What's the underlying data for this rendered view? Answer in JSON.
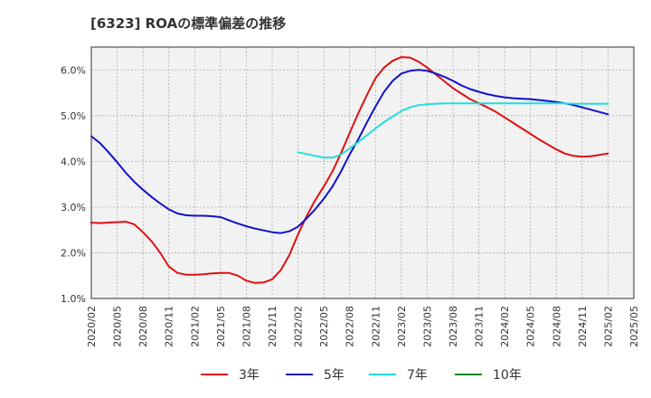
{
  "chart_data": {
    "type": "line",
    "title": "[6323]  ROAの標準偏差の推移",
    "xlabel": "",
    "ylabel": "",
    "ylim": [
      1.0,
      6.5
    ],
    "yticks": [
      1.0,
      2.0,
      3.0,
      4.0,
      5.0,
      6.0
    ],
    "ytick_labels": [
      "1.0%",
      "2.0%",
      "3.0%",
      "4.0%",
      "5.0%",
      "6.0%"
    ],
    "x_range": [
      "2020/02",
      "2025/05"
    ],
    "x_ticks": [
      "2020/02",
      "2020/05",
      "2020/08",
      "2020/11",
      "2021/02",
      "2021/05",
      "2021/08",
      "2021/11",
      "2022/02",
      "2022/05",
      "2022/08",
      "2022/11",
      "2023/02",
      "2023/05",
      "2023/08",
      "2023/11",
      "2024/02",
      "2024/05",
      "2024/08",
      "2024/11",
      "2025/02",
      "2025/05"
    ],
    "grid": true,
    "legend_position": "bottom",
    "series": [
      {
        "name": "3年",
        "color": "#dd1111",
        "points": [
          [
            "2020/02",
            2.66
          ],
          [
            "2020/03",
            2.65
          ],
          [
            "2020/04",
            2.66
          ],
          [
            "2020/05",
            2.67
          ],
          [
            "2020/06",
            2.68
          ],
          [
            "2020/07",
            2.62
          ],
          [
            "2020/08",
            2.45
          ],
          [
            "2020/09",
            2.25
          ],
          [
            "2020/10",
            2.0
          ],
          [
            "2020/11",
            1.7
          ],
          [
            "2020/12",
            1.56
          ],
          [
            "2021/01",
            1.52
          ],
          [
            "2021/02",
            1.52
          ],
          [
            "2021/03",
            1.53
          ],
          [
            "2021/04",
            1.55
          ],
          [
            "2021/05",
            1.56
          ],
          [
            "2021/06",
            1.56
          ],
          [
            "2021/07",
            1.5
          ],
          [
            "2021/08",
            1.39
          ],
          [
            "2021/09",
            1.34
          ],
          [
            "2021/10",
            1.35
          ],
          [
            "2021/11",
            1.42
          ],
          [
            "2021/12",
            1.62
          ],
          [
            "2022/01",
            1.95
          ],
          [
            "2022/02",
            2.4
          ],
          [
            "2022/03",
            2.8
          ],
          [
            "2022/04",
            3.15
          ],
          [
            "2022/05",
            3.45
          ],
          [
            "2022/06",
            3.78
          ],
          [
            "2022/07",
            4.18
          ],
          [
            "2022/08",
            4.62
          ],
          [
            "2022/09",
            5.05
          ],
          [
            "2022/10",
            5.45
          ],
          [
            "2022/11",
            5.82
          ],
          [
            "2022/12",
            6.05
          ],
          [
            "2023/01",
            6.2
          ],
          [
            "2023/02",
            6.28
          ],
          [
            "2023/03",
            6.27
          ],
          [
            "2023/04",
            6.18
          ],
          [
            "2023/05",
            6.05
          ],
          [
            "2023/06",
            5.9
          ],
          [
            "2023/07",
            5.75
          ],
          [
            "2023/08",
            5.6
          ],
          [
            "2023/09",
            5.48
          ],
          [
            "2023/10",
            5.36
          ],
          [
            "2023/11",
            5.27
          ],
          [
            "2023/12",
            5.18
          ],
          [
            "2024/01",
            5.08
          ],
          [
            "2024/02",
            4.96
          ],
          [
            "2024/03",
            4.84
          ],
          [
            "2024/04",
            4.72
          ],
          [
            "2024/05",
            4.6
          ],
          [
            "2024/06",
            4.48
          ],
          [
            "2024/07",
            4.37
          ],
          [
            "2024/08",
            4.26
          ],
          [
            "2024/09",
            4.17
          ],
          [
            "2024/10",
            4.12
          ],
          [
            "2024/11",
            4.1
          ],
          [
            "2024/12",
            4.11
          ],
          [
            "2025/01",
            4.14
          ],
          [
            "2025/02",
            4.17
          ]
        ]
      },
      {
        "name": "5年",
        "color": "#1111cc",
        "points": [
          [
            "2020/02",
            4.55
          ],
          [
            "2020/03",
            4.4
          ],
          [
            "2020/04",
            4.2
          ],
          [
            "2020/05",
            3.98
          ],
          [
            "2020/06",
            3.75
          ],
          [
            "2020/07",
            3.55
          ],
          [
            "2020/08",
            3.38
          ],
          [
            "2020/09",
            3.22
          ],
          [
            "2020/10",
            3.08
          ],
          [
            "2020/11",
            2.95
          ],
          [
            "2020/12",
            2.86
          ],
          [
            "2021/01",
            2.82
          ],
          [
            "2021/02",
            2.81
          ],
          [
            "2021/03",
            2.81
          ],
          [
            "2021/04",
            2.8
          ],
          [
            "2021/05",
            2.78
          ],
          [
            "2021/06",
            2.71
          ],
          [
            "2021/07",
            2.64
          ],
          [
            "2021/08",
            2.58
          ],
          [
            "2021/09",
            2.53
          ],
          [
            "2021/10",
            2.49
          ],
          [
            "2021/11",
            2.45
          ],
          [
            "2021/12",
            2.43
          ],
          [
            "2022/01",
            2.47
          ],
          [
            "2022/02",
            2.57
          ],
          [
            "2022/03",
            2.75
          ],
          [
            "2022/04",
            2.95
          ],
          [
            "2022/05",
            3.18
          ],
          [
            "2022/06",
            3.45
          ],
          [
            "2022/07",
            3.78
          ],
          [
            "2022/08",
            4.15
          ],
          [
            "2022/09",
            4.48
          ],
          [
            "2022/10",
            4.85
          ],
          [
            "2022/11",
            5.2
          ],
          [
            "2022/12",
            5.52
          ],
          [
            "2023/01",
            5.76
          ],
          [
            "2023/02",
            5.92
          ],
          [
            "2023/03",
            5.98
          ],
          [
            "2023/04",
            6.0
          ],
          [
            "2023/05",
            5.98
          ],
          [
            "2023/06",
            5.92
          ],
          [
            "2023/07",
            5.85
          ],
          [
            "2023/08",
            5.76
          ],
          [
            "2023/09",
            5.66
          ],
          [
            "2023/10",
            5.58
          ],
          [
            "2023/11",
            5.52
          ],
          [
            "2023/12",
            5.47
          ],
          [
            "2024/01",
            5.43
          ],
          [
            "2024/02",
            5.4
          ],
          [
            "2024/03",
            5.38
          ],
          [
            "2024/04",
            5.37
          ],
          [
            "2024/05",
            5.36
          ],
          [
            "2024/06",
            5.34
          ],
          [
            "2024/07",
            5.32
          ],
          [
            "2024/08",
            5.3
          ],
          [
            "2024/09",
            5.27
          ],
          [
            "2024/10",
            5.23
          ],
          [
            "2024/11",
            5.18
          ],
          [
            "2024/12",
            5.13
          ],
          [
            "2025/01",
            5.08
          ],
          [
            "2025/02",
            5.03
          ]
        ]
      },
      {
        "name": "7年",
        "color": "#22dddd",
        "points": [
          [
            "2022/02",
            4.2
          ],
          [
            "2022/03",
            4.16
          ],
          [
            "2022/04",
            4.12
          ],
          [
            "2022/05",
            4.08
          ],
          [
            "2022/06",
            4.08
          ],
          [
            "2022/07",
            4.15
          ],
          [
            "2022/08",
            4.28
          ],
          [
            "2022/09",
            4.42
          ],
          [
            "2022/10",
            4.57
          ],
          [
            "2022/11",
            4.72
          ],
          [
            "2022/12",
            4.86
          ],
          [
            "2023/01",
            4.98
          ],
          [
            "2023/02",
            5.1
          ],
          [
            "2023/03",
            5.18
          ],
          [
            "2023/04",
            5.23
          ],
          [
            "2023/05",
            5.25
          ],
          [
            "2023/06",
            5.26
          ],
          [
            "2023/07",
            5.27
          ],
          [
            "2023/08",
            5.27
          ],
          [
            "2023/09",
            5.27
          ],
          [
            "2023/10",
            5.27
          ],
          [
            "2023/11",
            5.27
          ],
          [
            "2023/12",
            5.27
          ],
          [
            "2024/01",
            5.27
          ],
          [
            "2024/02",
            5.27
          ],
          [
            "2024/03",
            5.27
          ],
          [
            "2024/04",
            5.27
          ],
          [
            "2024/05",
            5.27
          ],
          [
            "2024/06",
            5.27
          ],
          [
            "2024/07",
            5.27
          ],
          [
            "2024/08",
            5.27
          ],
          [
            "2024/09",
            5.27
          ],
          [
            "2024/10",
            5.26
          ],
          [
            "2024/11",
            5.26
          ],
          [
            "2024/12",
            5.26
          ],
          [
            "2025/01",
            5.26
          ],
          [
            "2025/02",
            5.26
          ]
        ]
      },
      {
        "name": "10年",
        "color": "#118811",
        "points": []
      }
    ]
  }
}
